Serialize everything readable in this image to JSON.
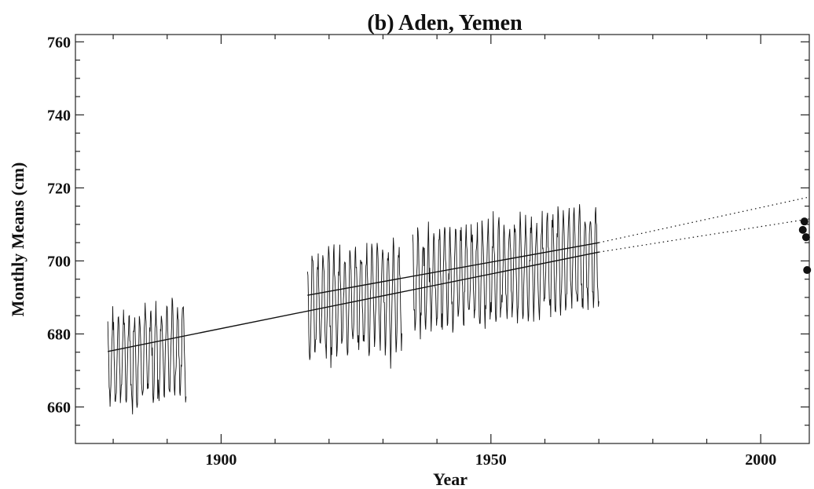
{
  "chart_data": {
    "type": "line",
    "title": "(b) Aden, Yemen",
    "xlabel": "Year",
    "ylabel": "Monthly Means (cm)",
    "xlim": [
      1873,
      2009
    ],
    "ylim": [
      650,
      762
    ],
    "x_ticks": [
      1900,
      1950,
      2000
    ],
    "y_ticks": [
      660,
      680,
      700,
      720,
      740,
      760
    ],
    "grid": false,
    "series": [
      {
        "segments": [
          {
            "start_year": 1879.0,
            "end_year": 1893.5,
            "mean": 674.5,
            "amplitude": 11.5,
            "trend_per_year": 0.22
          },
          {
            "start_year": 1916.0,
            "end_year": 1933.5,
            "mean": 689.5,
            "amplitude": 13.0,
            "trend_per_year": 0.15
          },
          {
            "start_year": 1935.5,
            "end_year": 1970.0,
            "mean": 697.5,
            "amplitude": 12.5,
            "trend_per_year": 0.2
          }
        ]
      }
    ],
    "trend_lines": [
      {
        "x": [
          1879,
          1970
        ],
        "y": [
          675.2,
          702.4
        ],
        "extended_to": [
          2009,
          711.5
        ]
      },
      {
        "x": [
          1916,
          1970
        ],
        "y": [
          690.6,
          705.0
        ],
        "extended_to": [
          2009,
          717.5
        ]
      }
    ],
    "observations": [
      {
        "x": 2007.8,
        "y": 708.5
      },
      {
        "x": 2008.1,
        "y": 710.8
      },
      {
        "x": 2008.4,
        "y": 706.5
      },
      {
        "x": 2008.6,
        "y": 697.5
      }
    ]
  }
}
